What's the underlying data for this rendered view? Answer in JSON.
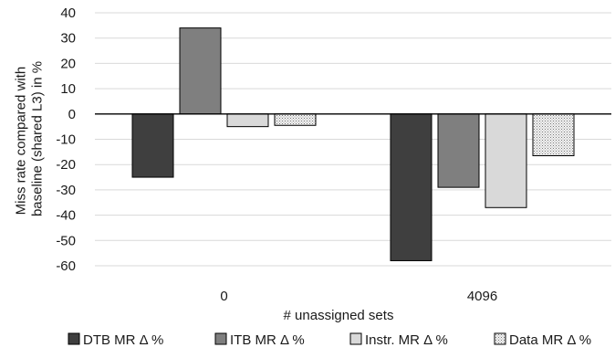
{
  "chart_data": {
    "type": "bar",
    "title": "",
    "xlabel": "# unassigned sets",
    "ylabel": "Miss rate compared with baseline (shared L3) in %",
    "ylabel_lines": [
      "Miss rate compared with",
      "baseline (shared L3) in %"
    ],
    "categories": [
      "0",
      "4096"
    ],
    "ylim": [
      -60,
      40
    ],
    "yticks": [
      40,
      30,
      20,
      10,
      0,
      -10,
      -20,
      -30,
      -40,
      -50,
      -60
    ],
    "grid": true,
    "legend_position": "bottom",
    "series": [
      {
        "name": "DTB MR  Δ %",
        "values": [
          -25,
          -58
        ],
        "color": "#3f3f3f",
        "pattern": "solid"
      },
      {
        "name": "ITB MR Δ %",
        "values": [
          34,
          -29
        ],
        "color": "#7f7f7f",
        "pattern": "solid"
      },
      {
        "name": "Instr. MR Δ %",
        "values": [
          -5,
          -37
        ],
        "color": "#d9d9d9",
        "pattern": "solid"
      },
      {
        "name": "Data MR Δ %",
        "values": [
          -4.5,
          -16.5
        ],
        "color": "#e8e8e8",
        "pattern": "dotted"
      }
    ]
  }
}
